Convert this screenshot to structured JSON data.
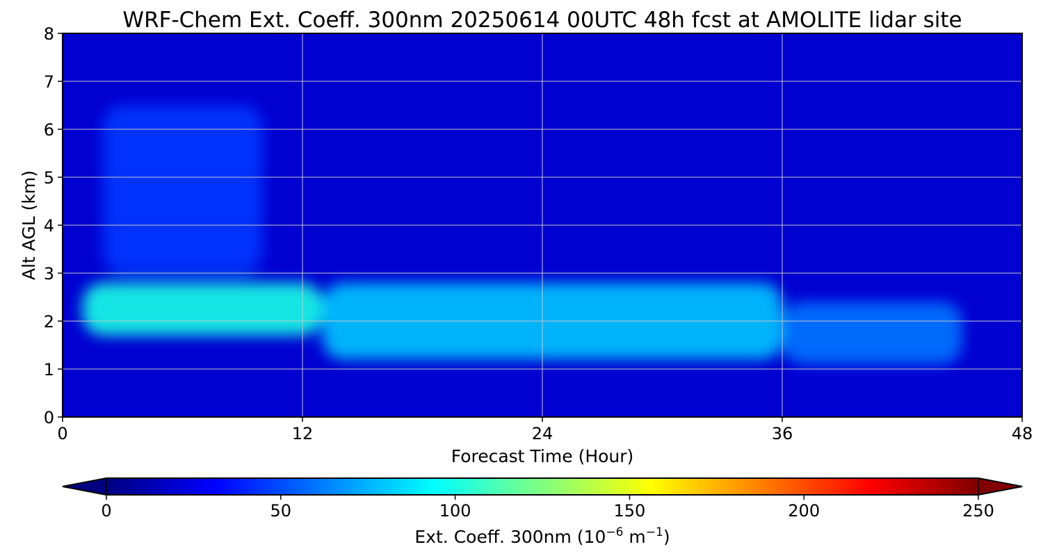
{
  "chart_data": {
    "type": "heatmap",
    "title": "WRF-Chem Ext. Coeff. 300nm  20250614 00UTC 48h fcst at AMOLITE lidar site",
    "xlabel": "Forecast Time (Hour)",
    "ylabel": "Alt AGL (km)",
    "xlim": [
      0,
      48
    ],
    "ylim": [
      0,
      8
    ],
    "x_ticks": [
      "0",
      "12",
      "24",
      "36",
      "48"
    ],
    "y_ticks": [
      "0",
      "1",
      "2",
      "3",
      "4",
      "5",
      "6",
      "7",
      "8"
    ],
    "grid": true,
    "colormap": "jet",
    "colorbar": {
      "label_main": "Ext. Coeff. 300nm  (10",
      "label_exp1": "−6",
      "label_mid": " m",
      "label_exp2": "−1",
      "label_end": ")",
      "min": 0,
      "max": 250,
      "ticks": [
        "0",
        "50",
        "100",
        "150",
        "200",
        "250"
      ],
      "extend": "both",
      "orientation": "horizontal",
      "placement": "bottom"
    },
    "features": [
      {
        "hour": [
          1,
          13
        ],
        "alt_km": [
          1.7,
          2.8
        ],
        "value": 100,
        "kind": "aerosol layer core"
      },
      {
        "hour": [
          13,
          36
        ],
        "alt_km": [
          1.2,
          2.8
        ],
        "value": 80,
        "kind": "aerosol layer, gradually descending"
      },
      {
        "hour": [
          36,
          45
        ],
        "alt_km": [
          1.1,
          2.4
        ],
        "value": 60,
        "kind": "aerosol layer, weakening"
      },
      {
        "hour": [
          2,
          10
        ],
        "alt_km": [
          3.0,
          6.5
        ],
        "value": 45,
        "kind": "elevated plume"
      },
      {
        "hour": [
          0,
          48
        ],
        "alt_km": [
          0,
          8
        ],
        "value": 20,
        "kind": "background"
      }
    ]
  }
}
